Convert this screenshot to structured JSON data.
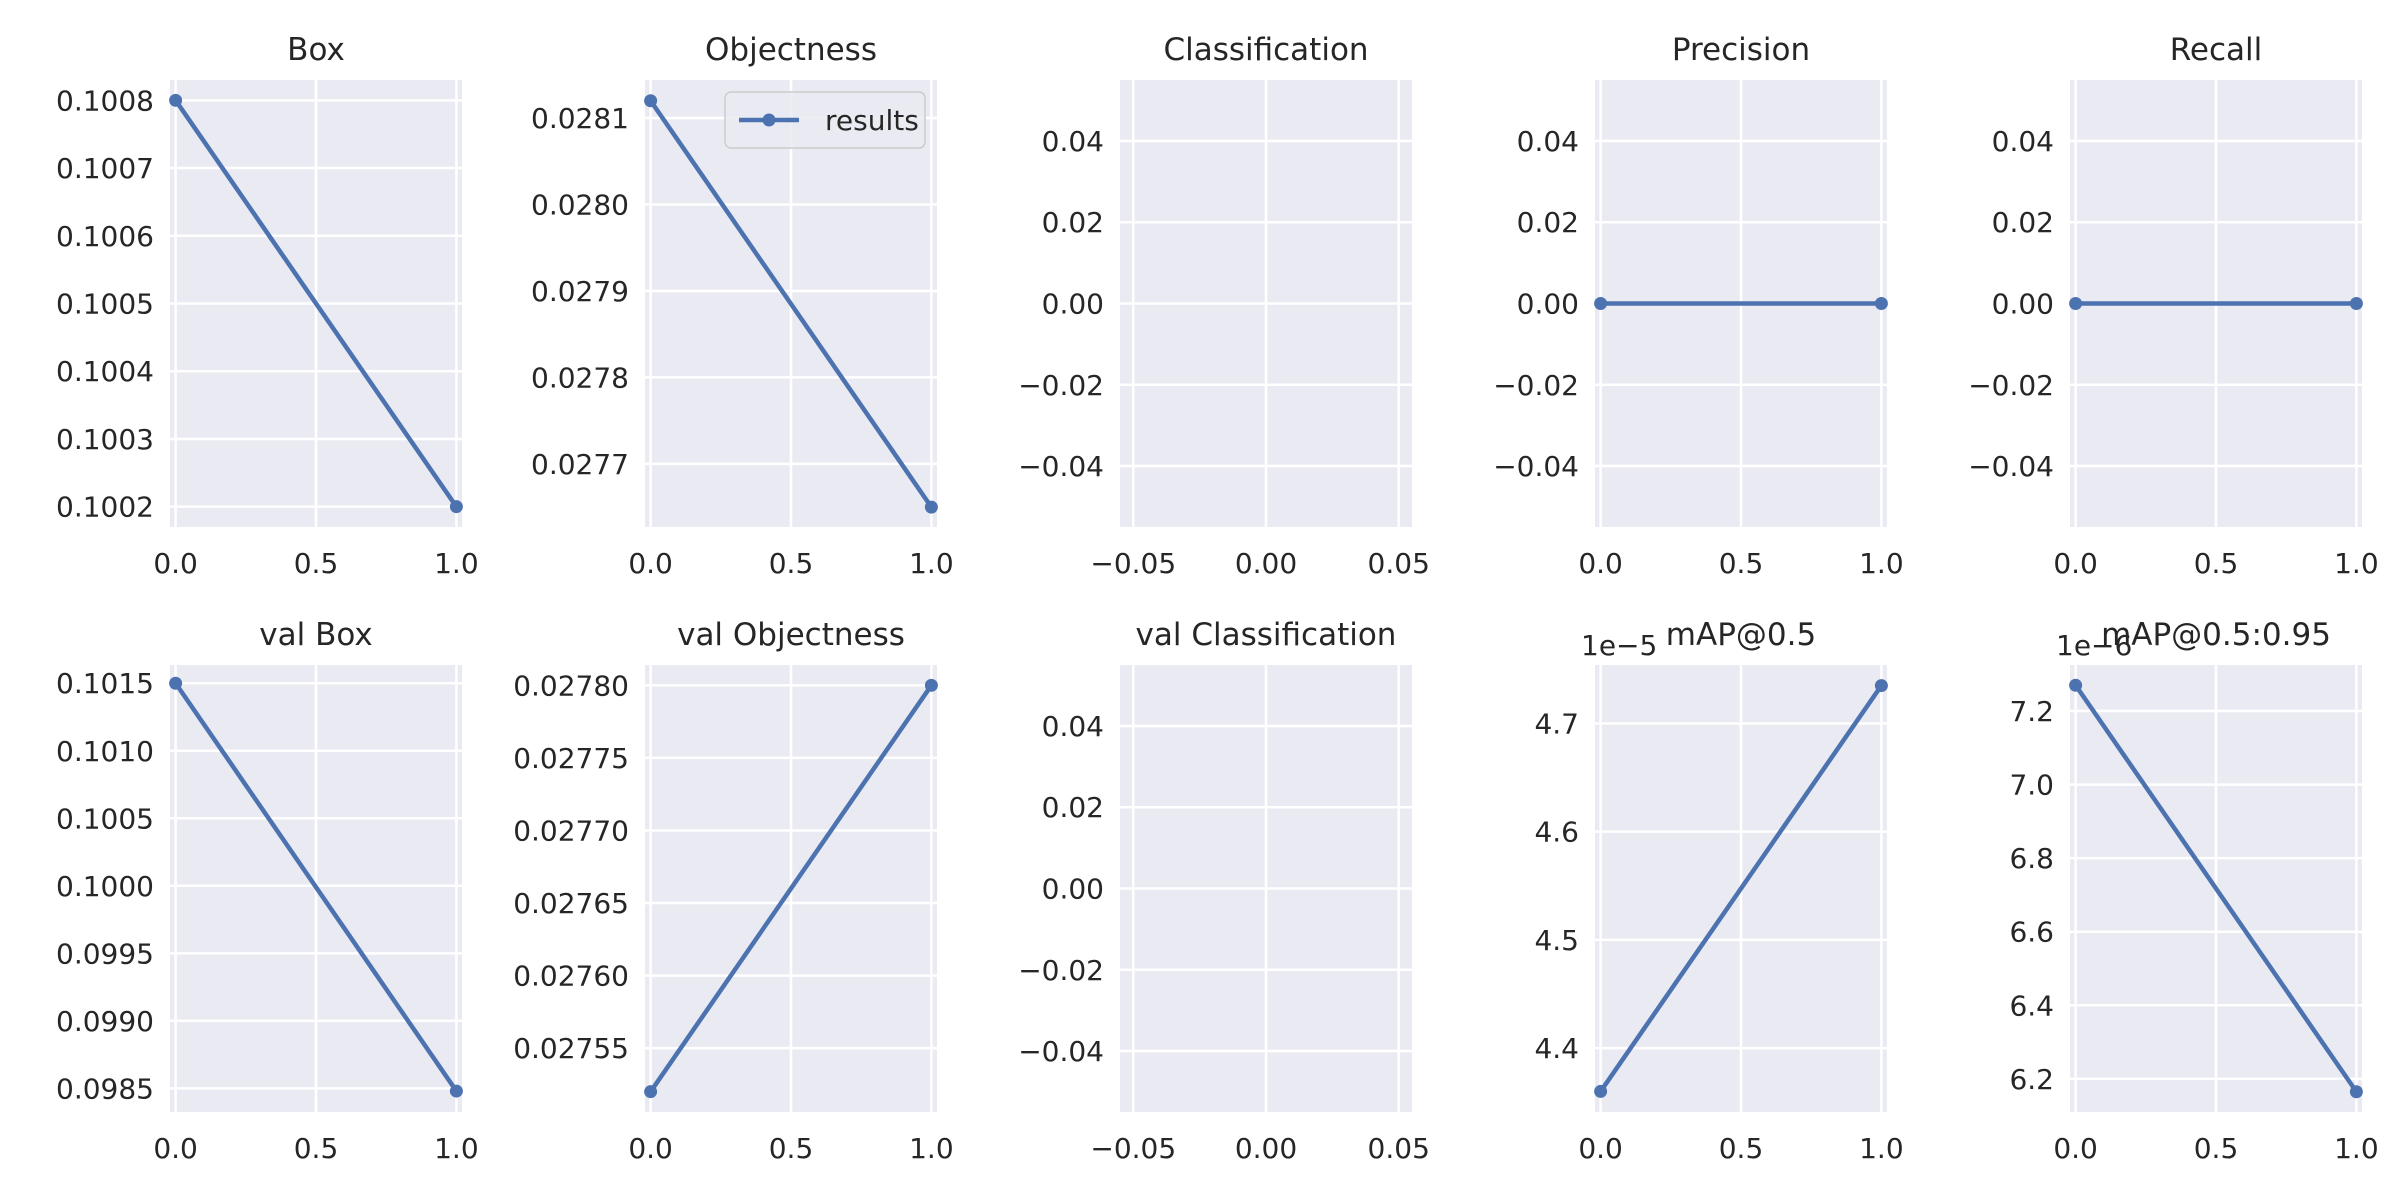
{
  "colors": {
    "axes_background": "#eaeaf2",
    "grid": "#ffffff",
    "line": "#4c72b0",
    "text": "#262626"
  },
  "legend": {
    "label": "results",
    "placement": "top-right of Objectness panel"
  },
  "chart_data": [
    {
      "type": "line",
      "title": "Box",
      "x": [
        0,
        1
      ],
      "y": [
        0.1008,
        0.1002
      ],
      "xlim": [
        -0.02,
        1.02
      ],
      "ylim": [
        0.10017,
        0.10083
      ],
      "xticks": [
        0,
        0.5,
        1
      ],
      "xtick_labels": [
        "0.0",
        "0.5",
        "1.0"
      ],
      "yticks": [
        0.1002,
        0.1003,
        0.1004,
        0.1005,
        0.1006,
        0.1007,
        0.1008
      ],
      "ytick_labels": [
        "0.1002",
        "0.1003",
        "0.1004",
        "0.1005",
        "0.1006",
        "0.1007",
        "0.1008"
      ],
      "offset_text": "",
      "grid": true
    },
    {
      "type": "line",
      "title": "Objectness",
      "x": [
        0,
        1
      ],
      "y": [
        0.02812,
        0.02765
      ],
      "xlim": [
        -0.02,
        1.02
      ],
      "ylim": [
        0.027627,
        0.028144
      ],
      "xticks": [
        0,
        0.5,
        1
      ],
      "xtick_labels": [
        "0.0",
        "0.5",
        "1.0"
      ],
      "yticks": [
        0.0277,
        0.0278,
        0.0279,
        0.028,
        0.0281
      ],
      "ytick_labels": [
        "0.0277",
        "0.0278",
        "0.0279",
        "0.0280",
        "0.0281"
      ],
      "offset_text": "",
      "grid": true,
      "legend": true
    },
    {
      "type": "line",
      "title": "Classification",
      "x": [],
      "y": [],
      "xlim": [
        -0.055,
        0.055
      ],
      "ylim": [
        -0.055,
        0.055
      ],
      "xticks": [
        -0.05,
        0,
        0.05
      ],
      "xtick_labels": [
        "−0.05",
        "0.00",
        "0.05"
      ],
      "yticks": [
        -0.04,
        -0.02,
        0,
        0.02,
        0.04
      ],
      "ytick_labels": [
        "−0.04",
        "−0.02",
        "0.00",
        "0.02",
        "0.04"
      ],
      "offset_text": "",
      "grid": true
    },
    {
      "type": "line",
      "title": "Precision",
      "x": [
        0,
        1
      ],
      "y": [
        0,
        0
      ],
      "xlim": [
        -0.02,
        1.02
      ],
      "ylim": [
        -0.055,
        0.055
      ],
      "xticks": [
        0,
        0.5,
        1
      ],
      "xtick_labels": [
        "0.0",
        "0.5",
        "1.0"
      ],
      "yticks": [
        -0.04,
        -0.02,
        0,
        0.02,
        0.04
      ],
      "ytick_labels": [
        "−0.04",
        "−0.02",
        "0.00",
        "0.02",
        "0.04"
      ],
      "offset_text": "",
      "grid": true
    },
    {
      "type": "line",
      "title": "Recall",
      "x": [
        0,
        1
      ],
      "y": [
        0,
        0
      ],
      "xlim": [
        -0.02,
        1.02
      ],
      "ylim": [
        -0.055,
        0.055
      ],
      "xticks": [
        0,
        0.5,
        1
      ],
      "xtick_labels": [
        "0.0",
        "0.5",
        "1.0"
      ],
      "yticks": [
        -0.04,
        -0.02,
        0,
        0.02,
        0.04
      ],
      "ytick_labels": [
        "−0.04",
        "−0.02",
        "0.00",
        "0.02",
        "0.04"
      ],
      "offset_text": "",
      "grid": true
    },
    {
      "type": "line",
      "title": "val Box",
      "x": [
        0,
        1
      ],
      "y": [
        0.1015,
        0.09848
      ],
      "xlim": [
        -0.02,
        1.02
      ],
      "ylim": [
        0.098325,
        0.101635
      ],
      "xticks": [
        0,
        0.5,
        1
      ],
      "xtick_labels": [
        "0.0",
        "0.5",
        "1.0"
      ],
      "yticks": [
        0.0985,
        0.099,
        0.0995,
        0.1,
        0.1005,
        0.101,
        0.1015
      ],
      "ytick_labels": [
        "0.0985",
        "0.0990",
        "0.0995",
        "0.1000",
        "0.1005",
        "0.1010",
        "0.1015"
      ],
      "offset_text": "",
      "grid": true
    },
    {
      "type": "line",
      "title": "val Objectness",
      "x": [
        0,
        1
      ],
      "y": [
        0.02752,
        0.0278
      ],
      "xlim": [
        -0.02,
        1.02
      ],
      "ylim": [
        0.027506,
        0.027814
      ],
      "xticks": [
        0,
        0.5,
        1
      ],
      "xtick_labels": [
        "0.0",
        "0.5",
        "1.0"
      ],
      "yticks": [
        0.02755,
        0.0276,
        0.02765,
        0.0277,
        0.02775,
        0.0278
      ],
      "ytick_labels": [
        "0.02755",
        "0.02760",
        "0.02765",
        "0.02770",
        "0.02775",
        "0.02780"
      ],
      "offset_text": "",
      "grid": true
    },
    {
      "type": "line",
      "title": "val Classification",
      "x": [],
      "y": [],
      "xlim": [
        -0.055,
        0.055
      ],
      "ylim": [
        -0.055,
        0.055
      ],
      "xticks": [
        -0.05,
        0,
        0.05
      ],
      "xtick_labels": [
        "−0.05",
        "0.00",
        "0.05"
      ],
      "yticks": [
        -0.04,
        -0.02,
        0,
        0.02,
        0.04
      ],
      "ytick_labels": [
        "−0.04",
        "−0.02",
        "0.00",
        "0.02",
        "0.04"
      ],
      "offset_text": "",
      "grid": true
    },
    {
      "type": "line",
      "title": "mAP@0.5",
      "x": [
        0,
        1
      ],
      "y": [
        4.36,
        4.735
      ],
      "xlim": [
        -0.02,
        1.02
      ],
      "ylim": [
        4.341,
        4.754
      ],
      "xticks": [
        0,
        0.5,
        1
      ],
      "xtick_labels": [
        "0.0",
        "0.5",
        "1.0"
      ],
      "yticks": [
        4.4,
        4.5,
        4.6,
        4.7
      ],
      "ytick_labels": [
        "4.4",
        "4.5",
        "4.6",
        "4.7"
      ],
      "offset_text": "1e−5",
      "grid": true
    },
    {
      "type": "line",
      "title": "mAP@0.5:0.95",
      "x": [
        0,
        1
      ],
      "y": [
        7.27,
        6.165
      ],
      "xlim": [
        -0.02,
        1.02
      ],
      "ylim": [
        6.11,
        7.325
      ],
      "xticks": [
        0,
        0.5,
        1
      ],
      "xtick_labels": [
        "0.0",
        "0.5",
        "1.0"
      ],
      "yticks": [
        6.2,
        6.4,
        6.6,
        6.8,
        7.0,
        7.2
      ],
      "ytick_labels": [
        "6.2",
        "6.4",
        "6.6",
        "6.8",
        "7.0",
        "7.2"
      ],
      "offset_text": "1e−6",
      "grid": true
    }
  ]
}
